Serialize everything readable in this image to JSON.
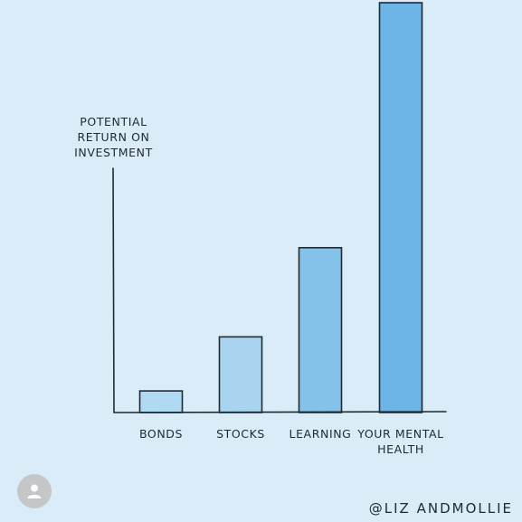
{
  "chart_data": {
    "type": "bar",
    "title": "",
    "ylabel_lines": [
      "POTENTIAL",
      "RETURN ON",
      "INVESTMENT"
    ],
    "xlabel": "",
    "categories": [
      {
        "lines": [
          "BONDS"
        ]
      },
      {
        "lines": [
          "STOCKS"
        ]
      },
      {
        "lines": [
          "LEARNING"
        ]
      },
      {
        "lines": [
          "YOUR MENTAL",
          "HEALTH"
        ]
      }
    ],
    "values": [
      24,
      84,
      183,
      455
    ],
    "ylim": [
      0,
      455
    ],
    "grid": false,
    "bar_colors": [
      "#b0daf1",
      "#a8d4ef",
      "#84c2e9",
      "#6cb5e6"
    ],
    "outline_color": "#1f2a33"
  },
  "credit": "@LIZ ANDMOLLIE",
  "avatar_icon": "user-icon"
}
